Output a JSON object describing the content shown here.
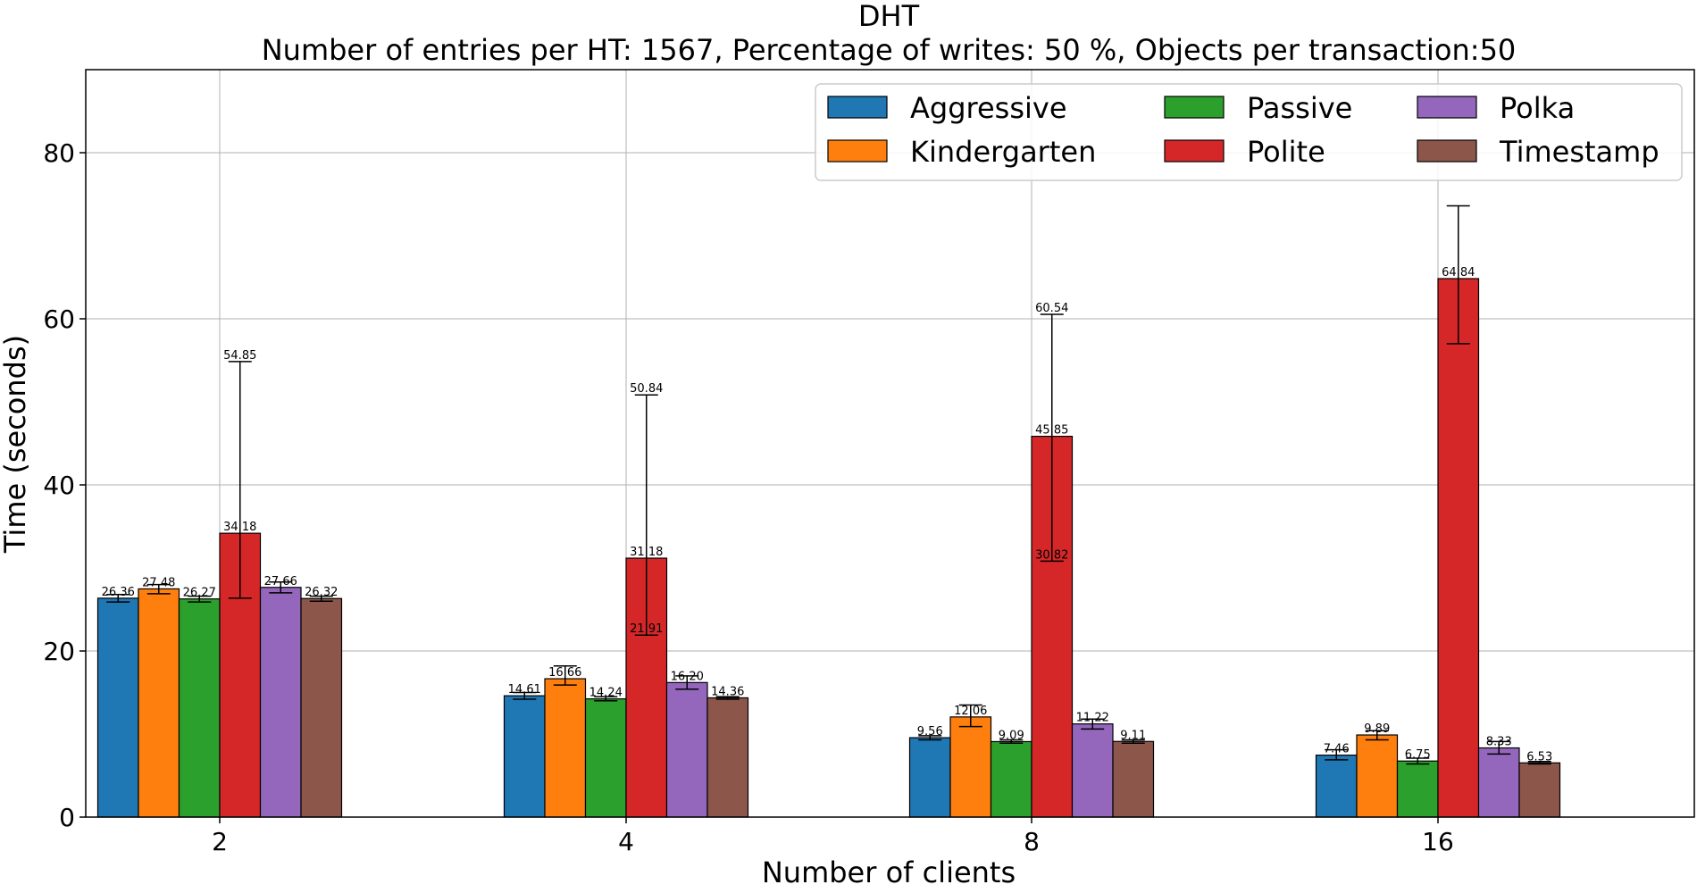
{
  "chart_data": {
    "type": "bar",
    "title": "DHT",
    "subtitle": "Number of entries per HT: 1567, Percentage of writes: 50 %, Objects per transaction:50",
    "xlabel": "Number of clients",
    "ylabel": "Time (seconds)",
    "categories": [
      "2",
      "4",
      "8",
      "16"
    ],
    "ylim": [
      0,
      90
    ],
    "yticks": [
      0,
      20,
      40,
      60,
      80
    ],
    "grid": true,
    "legend_position": "top-right",
    "legend_columns": 3,
    "series": [
      {
        "name": "Aggressive",
        "color": "#1f77b4",
        "values": [
          26.36,
          14.61,
          9.56,
          7.46
        ],
        "err_low": [
          25.9,
          14.2,
          9.3,
          6.9
        ],
        "err_high": [
          26.8,
          15.0,
          9.8,
          8.1
        ]
      },
      {
        "name": "Kindergarten",
        "color": "#ff7f0e",
        "values": [
          27.48,
          16.66,
          12.06,
          9.89
        ],
        "err_low": [
          26.9,
          15.9,
          10.9,
          9.3
        ],
        "err_high": [
          28.0,
          18.2,
          13.5,
          10.4
        ]
      },
      {
        "name": "Passive",
        "color": "#2ca02c",
        "values": [
          26.27,
          14.24,
          9.09,
          6.75
        ],
        "err_low": [
          25.9,
          14.0,
          8.9,
          6.4
        ],
        "err_high": [
          26.6,
          14.5,
          9.3,
          7.1
        ]
      },
      {
        "name": "Polite",
        "color": "#d62728",
        "values": [
          34.18,
          31.18,
          45.85,
          64.84
        ],
        "err_low": [
          26.36,
          21.91,
          30.82,
          57.0
        ],
        "err_high": [
          54.85,
          50.84,
          60.54,
          73.6
        ]
      },
      {
        "name": "Polka",
        "color": "#9467bd",
        "values": [
          27.66,
          16.2,
          11.22,
          8.33
        ],
        "err_low": [
          27.0,
          15.4,
          10.6,
          7.6
        ],
        "err_high": [
          28.3,
          17.0,
          11.8,
          9.1
        ]
      },
      {
        "name": "Timestamp",
        "color": "#8c564b",
        "values": [
          26.32,
          14.36,
          9.11,
          6.53
        ],
        "err_low": [
          26.0,
          14.2,
          8.9,
          6.4
        ],
        "err_high": [
          26.6,
          14.5,
          9.3,
          6.7
        ]
      }
    ],
    "data_labels": [
      [
        "26.36",
        "14.61",
        "9.56",
        "7.46"
      ],
      [
        "27.48",
        "16.66",
        "12.06",
        "9.89"
      ],
      [
        "26.27",
        "14.24",
        "9.09",
        "6.75"
      ],
      [
        "34.18",
        "31.18",
        "45.85",
        "64.84"
      ],
      [
        "27.66",
        "16.20",
        "11.22",
        "8.33"
      ],
      [
        "26.32",
        "14.36",
        "9.11",
        "6.53"
      ]
    ],
    "extra_labels": [
      {
        "series": 3,
        "category": 0,
        "text": "54.85",
        "value": 54.85
      },
      {
        "series": 3,
        "category": 1,
        "text": "50.84",
        "value": 50.84
      },
      {
        "series": 3,
        "category": 1,
        "text": "21.91",
        "value": 21.91
      },
      {
        "series": 3,
        "category": 2,
        "text": "60.54",
        "value": 60.54
      },
      {
        "series": 3,
        "category": 2,
        "text": "30.82",
        "value": 30.82
      }
    ]
  }
}
